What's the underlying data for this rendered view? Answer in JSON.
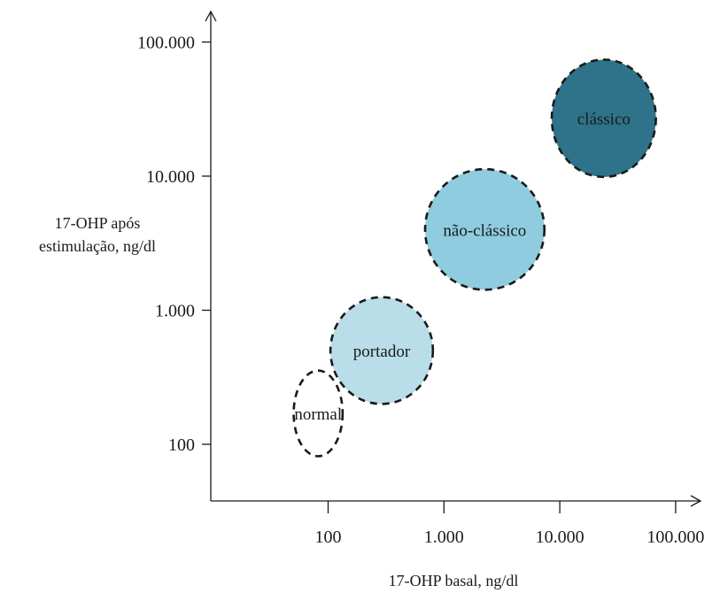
{
  "chart_data": {
    "type": "scatter",
    "x_scale": "log",
    "y_scale": "log",
    "xlabel": "17-OHP basal, ng/dl",
    "ylabel_lines": [
      "17-OHP após",
      "estimulação, ng/dl"
    ],
    "x_ticks": [
      {
        "value": 100,
        "label": "100"
      },
      {
        "value": 1000,
        "label": "1.000"
      },
      {
        "value": 10000,
        "label": "10.000"
      },
      {
        "value": 100000,
        "label": "100.000"
      }
    ],
    "y_ticks": [
      {
        "value": 100,
        "label": "100"
      },
      {
        "value": 1000,
        "label": "1.000"
      },
      {
        "value": 10000,
        "label": "10.000"
      },
      {
        "value": 100000,
        "label": "100.000"
      }
    ],
    "groups": [
      {
        "label": "normal",
        "x_center": 82,
        "y_center": 170,
        "x_range": [
          51,
          135
        ],
        "y_range": [
          85,
          370
        ],
        "fill": "#ffffff"
      },
      {
        "label": "portador",
        "x_center": 290,
        "y_center": 500,
        "x_range": [
          120,
          920
        ],
        "y_range": [
          200,
          1250
        ],
        "fill": "#b9dde9"
      },
      {
        "label": "não-clássico",
        "x_center": 2250,
        "y_center": 4000,
        "x_range": [
          700,
          7500
        ],
        "y_range": [
          1450,
          11500
        ],
        "fill": "#8fcce0"
      },
      {
        "label": "clássico",
        "x_center": 24000,
        "y_center": 27000,
        "x_range": [
          8200,
          65000
        ],
        "y_range": [
          10000,
          75000
        ],
        "fill": "#2e7389"
      }
    ]
  }
}
